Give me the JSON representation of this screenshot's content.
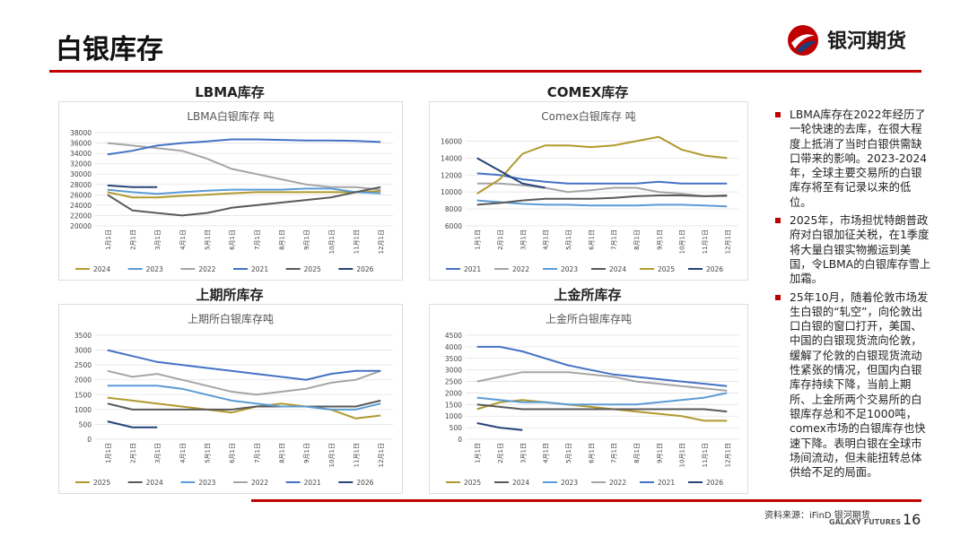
{
  "header": {
    "title": "白银库存",
    "logo": "银河期货"
  },
  "panels": [
    {
      "heading": "LBMA库存",
      "chart_data": {
        "type": "line",
        "title": "LBMA白银库存 吨",
        "categories": [
          "1月1日",
          "2月1日",
          "3月1日",
          "4月1日",
          "5月1日",
          "6月1日",
          "7月1日",
          "8月1日",
          "9月1日",
          "10月1日",
          "11月1日",
          "12月1日"
        ],
        "ylim": [
          20000,
          38000
        ],
        "yticks": [
          20000,
          22000,
          24000,
          26000,
          28000,
          30000,
          32000,
          34000,
          36000,
          38000
        ],
        "series": [
          {
            "name": "2024",
            "color": "#b09a2e",
            "values": [
              26500,
              25500,
              25500,
              25800,
              26000,
              26300,
              26500,
              26500,
              26500,
              26500,
              26500,
              26700
            ]
          },
          {
            "name": "2023",
            "color": "#5b9bd5",
            "values": [
              27000,
              26500,
              26200,
              26500,
              26800,
              27000,
              27000,
              27000,
              27200,
              27200,
              26500,
              26300
            ]
          },
          {
            "name": "2022",
            "color": "#a5a5a5",
            "values": [
              36000,
              35500,
              35000,
              34500,
              33000,
              31000,
              30000,
              29000,
              28000,
              27500,
              27500,
              27000
            ]
          },
          {
            "name": "2021",
            "color": "#4472c4",
            "values": [
              33800,
              34500,
              35500,
              36000,
              36300,
              36700,
              36700,
              36600,
              36500,
              36500,
              36400,
              36200
            ]
          },
          {
            "name": "2025",
            "color": "#595959",
            "values": [
              26000,
              23000,
              22500,
              22000,
              22500,
              23500,
              24000,
              24500,
              25000,
              25500,
              26500,
              27500
            ]
          },
          {
            "name": "2026",
            "color": "#264478",
            "values": [
              27800,
              27500,
              27500,
              null,
              null,
              null,
              null,
              null,
              null,
              null,
              null,
              null
            ]
          }
        ]
      }
    },
    {
      "heading": "COMEX库存",
      "chart_data": {
        "type": "line",
        "title": "Comex白银库存 吨",
        "categories": [
          "1月1日",
          "2月1日",
          "3月1日",
          "4月1日",
          "5月1日",
          "6月1日",
          "7月1日",
          "8月1日",
          "9月1日",
          "10月1日",
          "11月1日",
          "12月1日"
        ],
        "ylim": [
          6000,
          17000
        ],
        "yticks": [
          6000,
          8000,
          10000,
          12000,
          14000,
          16000
        ],
        "series": [
          {
            "name": "2021",
            "color": "#4472c4",
            "values": [
              12200,
              12000,
              11500,
              11200,
              11000,
              11000,
              11000,
              11000,
              11200,
              11000,
              11000,
              11000
            ]
          },
          {
            "name": "2022",
            "color": "#a5a5a5",
            "values": [
              11000,
              11000,
              10800,
              10500,
              10000,
              10200,
              10500,
              10500,
              10000,
              9800,
              9500,
              9500
            ]
          },
          {
            "name": "2023",
            "color": "#5b9bd5",
            "values": [
              9000,
              8800,
              8600,
              8500,
              8500,
              8400,
              8400,
              8400,
              8500,
              8500,
              8400,
              8300
            ]
          },
          {
            "name": "2024",
            "color": "#595959",
            "values": [
              8500,
              8700,
              9000,
              9200,
              9200,
              9200,
              9300,
              9500,
              9600,
              9600,
              9500,
              9600
            ]
          },
          {
            "name": "2025",
            "color": "#b09a2e",
            "values": [
              9800,
              11500,
              14500,
              15500,
              15500,
              15300,
              15500,
              16000,
              16500,
              15000,
              14300,
              14000
            ]
          },
          {
            "name": "2026",
            "color": "#264478",
            "values": [
              14000,
              12500,
              11000,
              10500,
              null,
              null,
              null,
              null,
              null,
              null,
              null,
              null
            ]
          }
        ]
      }
    },
    {
      "heading": "上期所库存",
      "chart_data": {
        "type": "line",
        "title": "上期所白银库存吨",
        "categories": [
          "1月1日",
          "2月1日",
          "3月1日",
          "4月1日",
          "5月1日",
          "6月1日",
          "7月1日",
          "8月1日",
          "9月1日",
          "10月1日",
          "11月1日",
          "12月1日"
        ],
        "ylim": [
          0,
          3500
        ],
        "yticks": [
          0,
          500,
          1000,
          1500,
          2000,
          2500,
          3000,
          3500
        ],
        "series": [
          {
            "name": "2025",
            "color": "#b09a2e",
            "values": [
              1400,
              1300,
              1200,
              1100,
              1000,
              900,
              1100,
              1200,
              1100,
              1000,
              700,
              800
            ]
          },
          {
            "name": "2024",
            "color": "#595959",
            "values": [
              1200,
              1000,
              1000,
              1000,
              1000,
              1000,
              1100,
              1100,
              1100,
              1100,
              1100,
              1300
            ]
          },
          {
            "name": "2023",
            "color": "#5b9bd5",
            "values": [
              1800,
              1800,
              1800,
              1700,
              1500,
              1300,
              1200,
              1100,
              1100,
              1000,
              1000,
              1200
            ]
          },
          {
            "name": "2022",
            "color": "#a5a5a5",
            "values": [
              2300,
              2100,
              2200,
              2000,
              1800,
              1600,
              1500,
              1600,
              1700,
              1900,
              2000,
              2300
            ]
          },
          {
            "name": "2021",
            "color": "#4472c4",
            "values": [
              3000,
              2800,
              2600,
              2500,
              2400,
              2300,
              2200,
              2100,
              2000,
              2200,
              2300,
              2300
            ]
          },
          {
            "name": "2026",
            "color": "#264478",
            "values": [
              600,
              400,
              400,
              null,
              null,
              null,
              null,
              null,
              null,
              null,
              null,
              null
            ]
          }
        ]
      }
    },
    {
      "heading": "上金所库存",
      "chart_data": {
        "type": "line",
        "title": "上金所白银库存吨",
        "categories": [
          "1月1日",
          "2月1日",
          "3月1日",
          "4月1日",
          "5月1日",
          "6月1日",
          "7月1日",
          "8月1日",
          "9月1日",
          "10月1日",
          "11月1日",
          "12月1日"
        ],
        "ylim": [
          0,
          4500
        ],
        "yticks": [
          0,
          500,
          1000,
          1500,
          2000,
          2500,
          3000,
          3500,
          4000,
          4500
        ],
        "series": [
          {
            "name": "2025",
            "color": "#b09a2e",
            "values": [
              1300,
              1600,
              1700,
              1600,
              1500,
              1400,
              1300,
              1200,
              1100,
              1000,
              800,
              800
            ]
          },
          {
            "name": "2024",
            "color": "#595959",
            "values": [
              1500,
              1400,
              1300,
              1300,
              1300,
              1300,
              1300,
              1300,
              1300,
              1300,
              1300,
              1200
            ]
          },
          {
            "name": "2023",
            "color": "#5b9bd5",
            "values": [
              1800,
              1700,
              1600,
              1600,
              1500,
              1500,
              1500,
              1500,
              1600,
              1700,
              1800,
              2000
            ]
          },
          {
            "name": "2022",
            "color": "#a5a5a5",
            "values": [
              2500,
              2700,
              2900,
              2900,
              2900,
              2800,
              2700,
              2500,
              2400,
              2300,
              2200,
              2100
            ]
          },
          {
            "name": "2021",
            "color": "#4472c4",
            "values": [
              4000,
              4000,
              3800,
              3500,
              3200,
              3000,
              2800,
              2700,
              2600,
              2500,
              2400,
              2300
            ]
          },
          {
            "name": "2026",
            "color": "#264478",
            "values": [
              700,
              500,
              400,
              null,
              null,
              null,
              null,
              null,
              null,
              null,
              null,
              null
            ]
          }
        ]
      }
    }
  ],
  "bullets": [
    "LBMA库存在2022年经历了一轮快速的去库，在很大程度上抵消了当时白银供需缺口带来的影响。2023-2024年，全球主要交易所的白银库存将至有记录以来的低位。",
    "2025年，市场担忧特朗普政府对白银加征关税，在1季度将大量白银实物搬运到美国，令LBMA的白银库存雪上加霜。",
    "25年10月，随着伦敦市场发生白银的“轧空”，向伦敦出口白银的窗口打开，美国、中国的白银现货流向伦敦，缓解了伦敦的白银现货流动性紧张的情况，但国内白银库存持续下降，当前上期所、上金所两个交易所的白银库存总和不足1000吨，comex市场的白银库存也快速下降。表明白银在全球市场间流动，但未能扭转总体供给不足的局面。"
  ],
  "footer": {
    "source": "资料来源：iFinD 银河期货",
    "brand": "GALAXY FUTURES",
    "page": "16"
  }
}
